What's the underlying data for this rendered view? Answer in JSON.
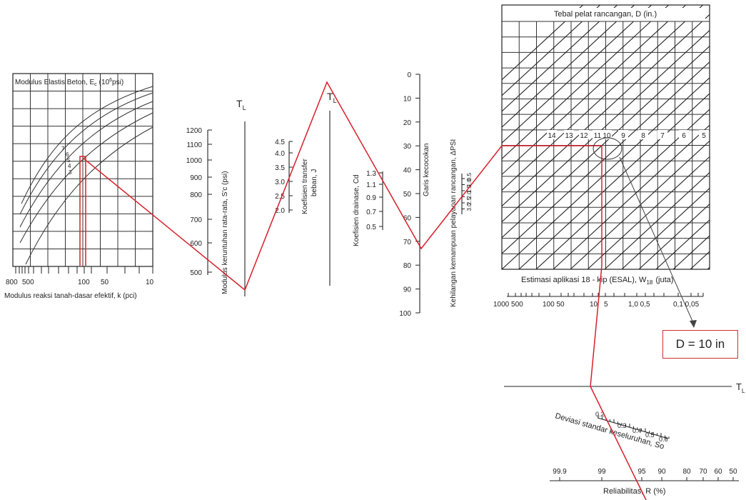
{
  "result": {
    "text": "D = 10 in"
  },
  "modulus_chart": {
    "title": "Modulus Elastis Beton, E",
    "title_sub": "c",
    "title_unit": "(10",
    "title_exp": "6",
    "title_tail": "psi)",
    "curve_labels": [
      "7",
      "6",
      "5",
      "4",
      "3"
    ],
    "x_ticks": [
      "800",
      "500",
      "100",
      "50",
      "10"
    ],
    "x_label": "Modulus reaksi tanah-dasar efektif, k (pci)"
  },
  "rupture_axis": {
    "label": "Modulus keruntuhan rata-rata, S'c (psi)",
    "ticks": [
      "1200",
      "1100",
      "1000",
      "900",
      "800",
      "700",
      "600",
      "500"
    ]
  },
  "turning_labels": {
    "TL": "T",
    "TL_sub": "L"
  },
  "load_transfer": {
    "label_lines": [
      "Koefisien transfer",
      "beban, J"
    ],
    "ticks": [
      "4.5",
      "4.0",
      "3.5",
      "3.0",
      "2.5",
      "2.0"
    ]
  },
  "drainage": {
    "label": "Koefisien drainase, Cd",
    "ticks": [
      "1.3",
      "1.1",
      "0.9",
      "0.7",
      "0.5"
    ]
  },
  "match_line": {
    "label": "Garis kecocokan",
    "ticks": [
      "0",
      "10",
      "20",
      "30",
      "40",
      "50",
      "60",
      "70",
      "80",
      "90",
      "100"
    ]
  },
  "psi_loss": {
    "label": "Kehilangan kemampuan pelayanan rancangan, ΔPSI",
    "ticks": [
      "0.5",
      "1.0",
      "1.5",
      "2.0",
      "2.5",
      "3.0"
    ]
  },
  "thickness_chart": {
    "title": "Tebal pelat rancangan, D (in.)",
    "line_labels": [
      "14",
      "13",
      "12",
      "11",
      "10",
      "9",
      "8",
      "7",
      "6",
      "5"
    ],
    "esal_label": "Estimasi aplikasi 18 - kip (ESAL), W",
    "esal_sub": "18",
    "esal_tail": "(juta)",
    "esal_ticks": [
      "1000 500",
      "100 50",
      "10",
      "5",
      "1,0 0,5",
      "0,1 0,05"
    ]
  },
  "std_dev": {
    "label": "Deviasi standar keseluruhan, So",
    "ticks": [
      "0.2",
      "0.3",
      "0.4",
      "0.5",
      "0.6"
    ]
  },
  "reliability": {
    "label": "Reliabilitas, R (%)",
    "ticks": [
      "99.9",
      "99",
      "95",
      "90",
      "80",
      "70",
      "60",
      "50"
    ]
  }
}
